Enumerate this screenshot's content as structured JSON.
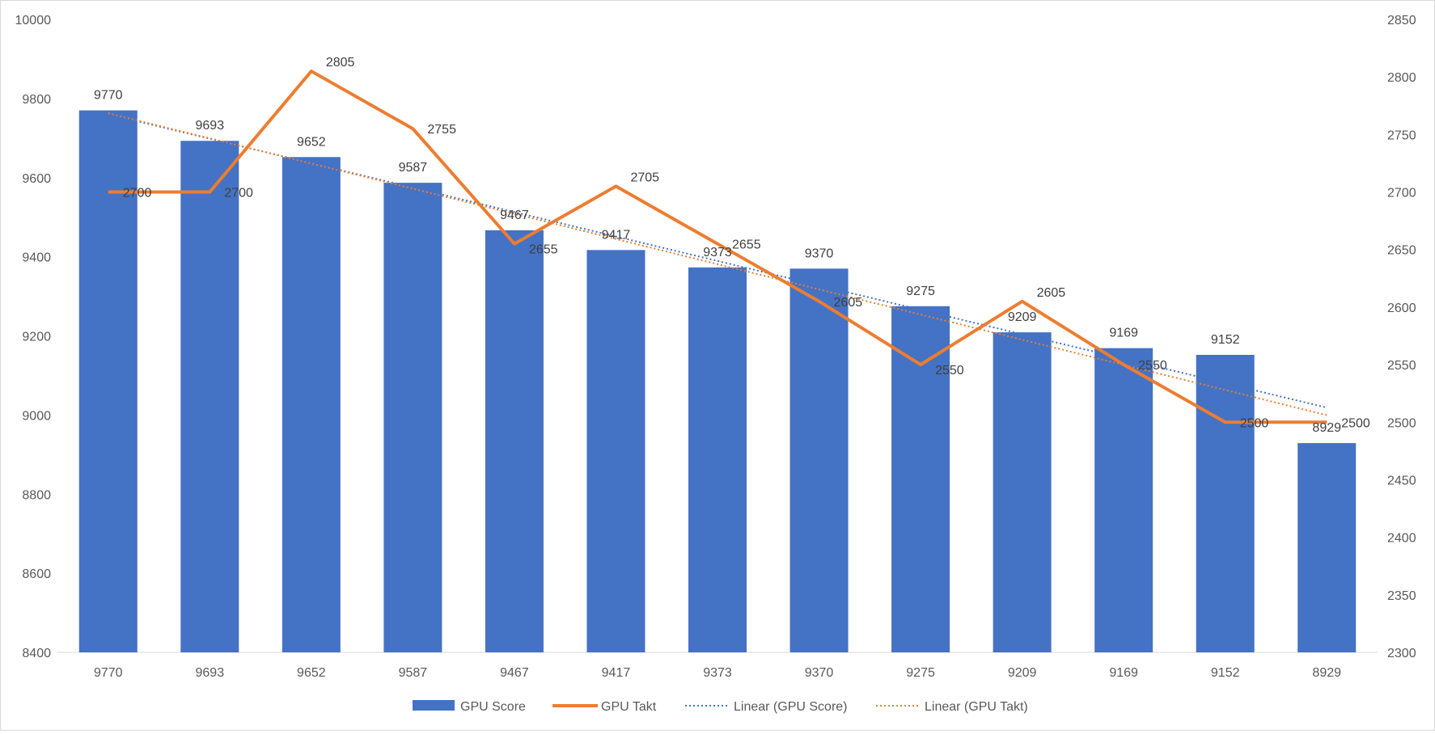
{
  "chart_data": {
    "type": "bar",
    "categories": [
      "9770",
      "9693",
      "9652",
      "9587",
      "9467",
      "9417",
      "9373",
      "9370",
      "9275",
      "9209",
      "9169",
      "9152",
      "8929"
    ],
    "series": [
      {
        "name": "GPU Score",
        "type": "bar",
        "axis": "left",
        "values": [
          9770,
          9693,
          9652,
          9587,
          9467,
          9417,
          9373,
          9370,
          9275,
          9209,
          9169,
          9152,
          8929
        ],
        "color": "#4472C4"
      },
      {
        "name": "GPU Takt",
        "type": "line",
        "axis": "right",
        "values": [
          2700,
          2700,
          2805,
          2755,
          2655,
          2705,
          2655,
          2605,
          2550,
          2605,
          2550,
          2500,
          2500
        ],
        "color": "#ED7D31"
      }
    ],
    "trendlines": [
      {
        "name": "Linear (GPU Score)",
        "of": "GPU Score",
        "style": "dotted",
        "color": "#4472C4"
      },
      {
        "name": "Linear (GPU Takt)",
        "of": "GPU Takt",
        "style": "dotted",
        "color": "#ED7D31"
      }
    ],
    "y_left": {
      "min": 8400,
      "max": 10000,
      "step": 200,
      "ticks": [
        "8400",
        "8600",
        "8800",
        "9000",
        "9200",
        "9400",
        "9600",
        "9800",
        "10000"
      ]
    },
    "y_right": {
      "min": 2300,
      "max": 2850,
      "step": 50,
      "ticks": [
        "2300",
        "2350",
        "2400",
        "2450",
        "2500",
        "2550",
        "2600",
        "2650",
        "2700",
        "2750",
        "2800",
        "2850"
      ]
    },
    "title": "",
    "xlabel": "",
    "ylabel": "",
    "grid": false,
    "legend": "bottom",
    "data_labels": true
  }
}
